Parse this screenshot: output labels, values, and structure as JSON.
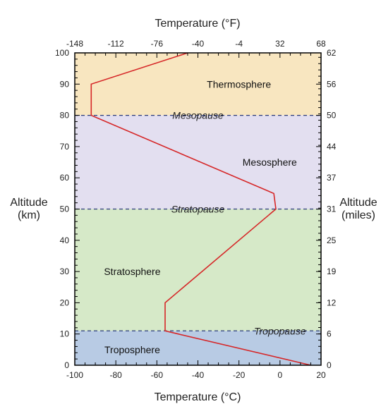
{
  "chart_data": {
    "type": "line",
    "top_axis_title": "Temperature (°F)",
    "bottom_axis_title": "Temperature (°C)",
    "left_axis_title": [
      "Altitude",
      "(km)"
    ],
    "right_axis_title": [
      "Altitude",
      "(miles)"
    ],
    "xlim": [
      -100,
      20
    ],
    "ylim": [
      0,
      100
    ],
    "bottom_ticks": [
      -100,
      -80,
      -60,
      -40,
      -20,
      0,
      20
    ],
    "top_ticks": [
      -148,
      -112,
      -76,
      -40,
      -4,
      32,
      68
    ],
    "left_ticks": [
      0,
      10,
      20,
      30,
      40,
      50,
      60,
      70,
      80,
      90,
      100
    ],
    "right_ticks": [
      0,
      6,
      12,
      19,
      25,
      31,
      37,
      44,
      50,
      56,
      62
    ],
    "layers": [
      {
        "name": "Troposphere",
        "from": 0,
        "to": 11,
        "color": "#b8cbe4"
      },
      {
        "name": "Stratosphere",
        "from": 11,
        "to": 50,
        "color": "#d6e9c8"
      },
      {
        "name": "Mesosphere",
        "from": 50,
        "to": 80,
        "color": "#e3dff0"
      },
      {
        "name": "Thermosphere",
        "from": 80,
        "to": 100,
        "color": "#f8e6c0"
      }
    ],
    "pauses": [
      {
        "name": "Tropopause",
        "altitude": 11
      },
      {
        "name": "Stratopause",
        "altitude": 50
      },
      {
        "name": "Mesopause",
        "altitude": 80
      }
    ],
    "series": [
      {
        "color": "#d62728",
        "points": [
          [
            15,
            0
          ],
          [
            -56,
            11
          ],
          [
            -56,
            20
          ],
          [
            -2,
            50
          ],
          [
            -3,
            55
          ],
          [
            -92,
            80
          ],
          [
            -92,
            90
          ],
          [
            -45,
            100
          ]
        ]
      }
    ],
    "pause_line_color": "#2a3a7a",
    "grid": false
  }
}
